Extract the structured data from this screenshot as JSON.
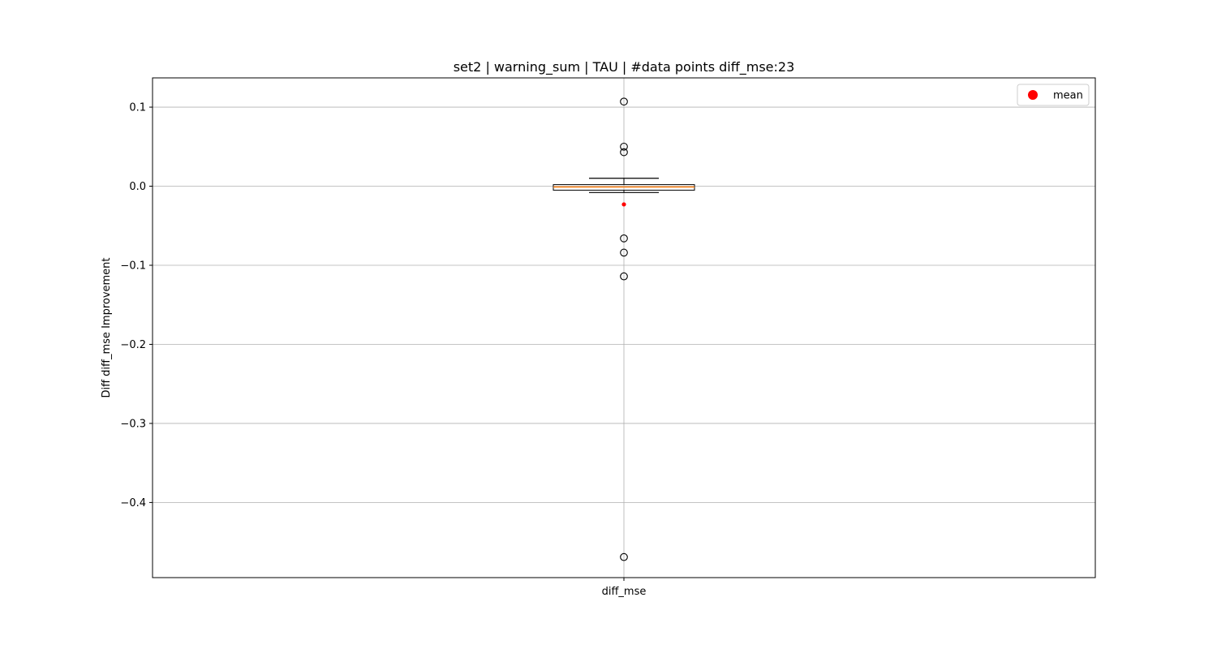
{
  "chart_data": {
    "type": "box",
    "title": "set2 | warning_sum | TAU | #data points diff_mse:23",
    "xlabel": "",
    "ylabel": "Diff diff_mse Improvement",
    "categories": [
      "diff_mse"
    ],
    "ylim": [
      -0.495,
      0.137
    ],
    "yticks": [
      0.1,
      0.0,
      -0.1,
      -0.2,
      -0.3,
      -0.4
    ],
    "ytick_labels": [
      "0.1",
      "0.0",
      "−0.1",
      "−0.2",
      "−0.3",
      "−0.4"
    ],
    "grid": true,
    "box": {
      "q1": -0.005,
      "median": -0.001,
      "q3": 0.002,
      "whisker_low": -0.008,
      "whisker_high": 0.01,
      "mean": -0.023,
      "outliers": [
        0.107,
        0.05,
        0.043,
        -0.066,
        -0.084,
        -0.114,
        -0.469
      ]
    },
    "legend": {
      "position": "top-right",
      "entries": [
        {
          "label": "mean",
          "color": "#ff0000",
          "marker": "circle"
        }
      ]
    },
    "colors": {
      "median_line": "#ff7f0e",
      "mean_marker": "#ff0000",
      "box_edge": "#000000",
      "grid": "#b0b0b0"
    }
  }
}
